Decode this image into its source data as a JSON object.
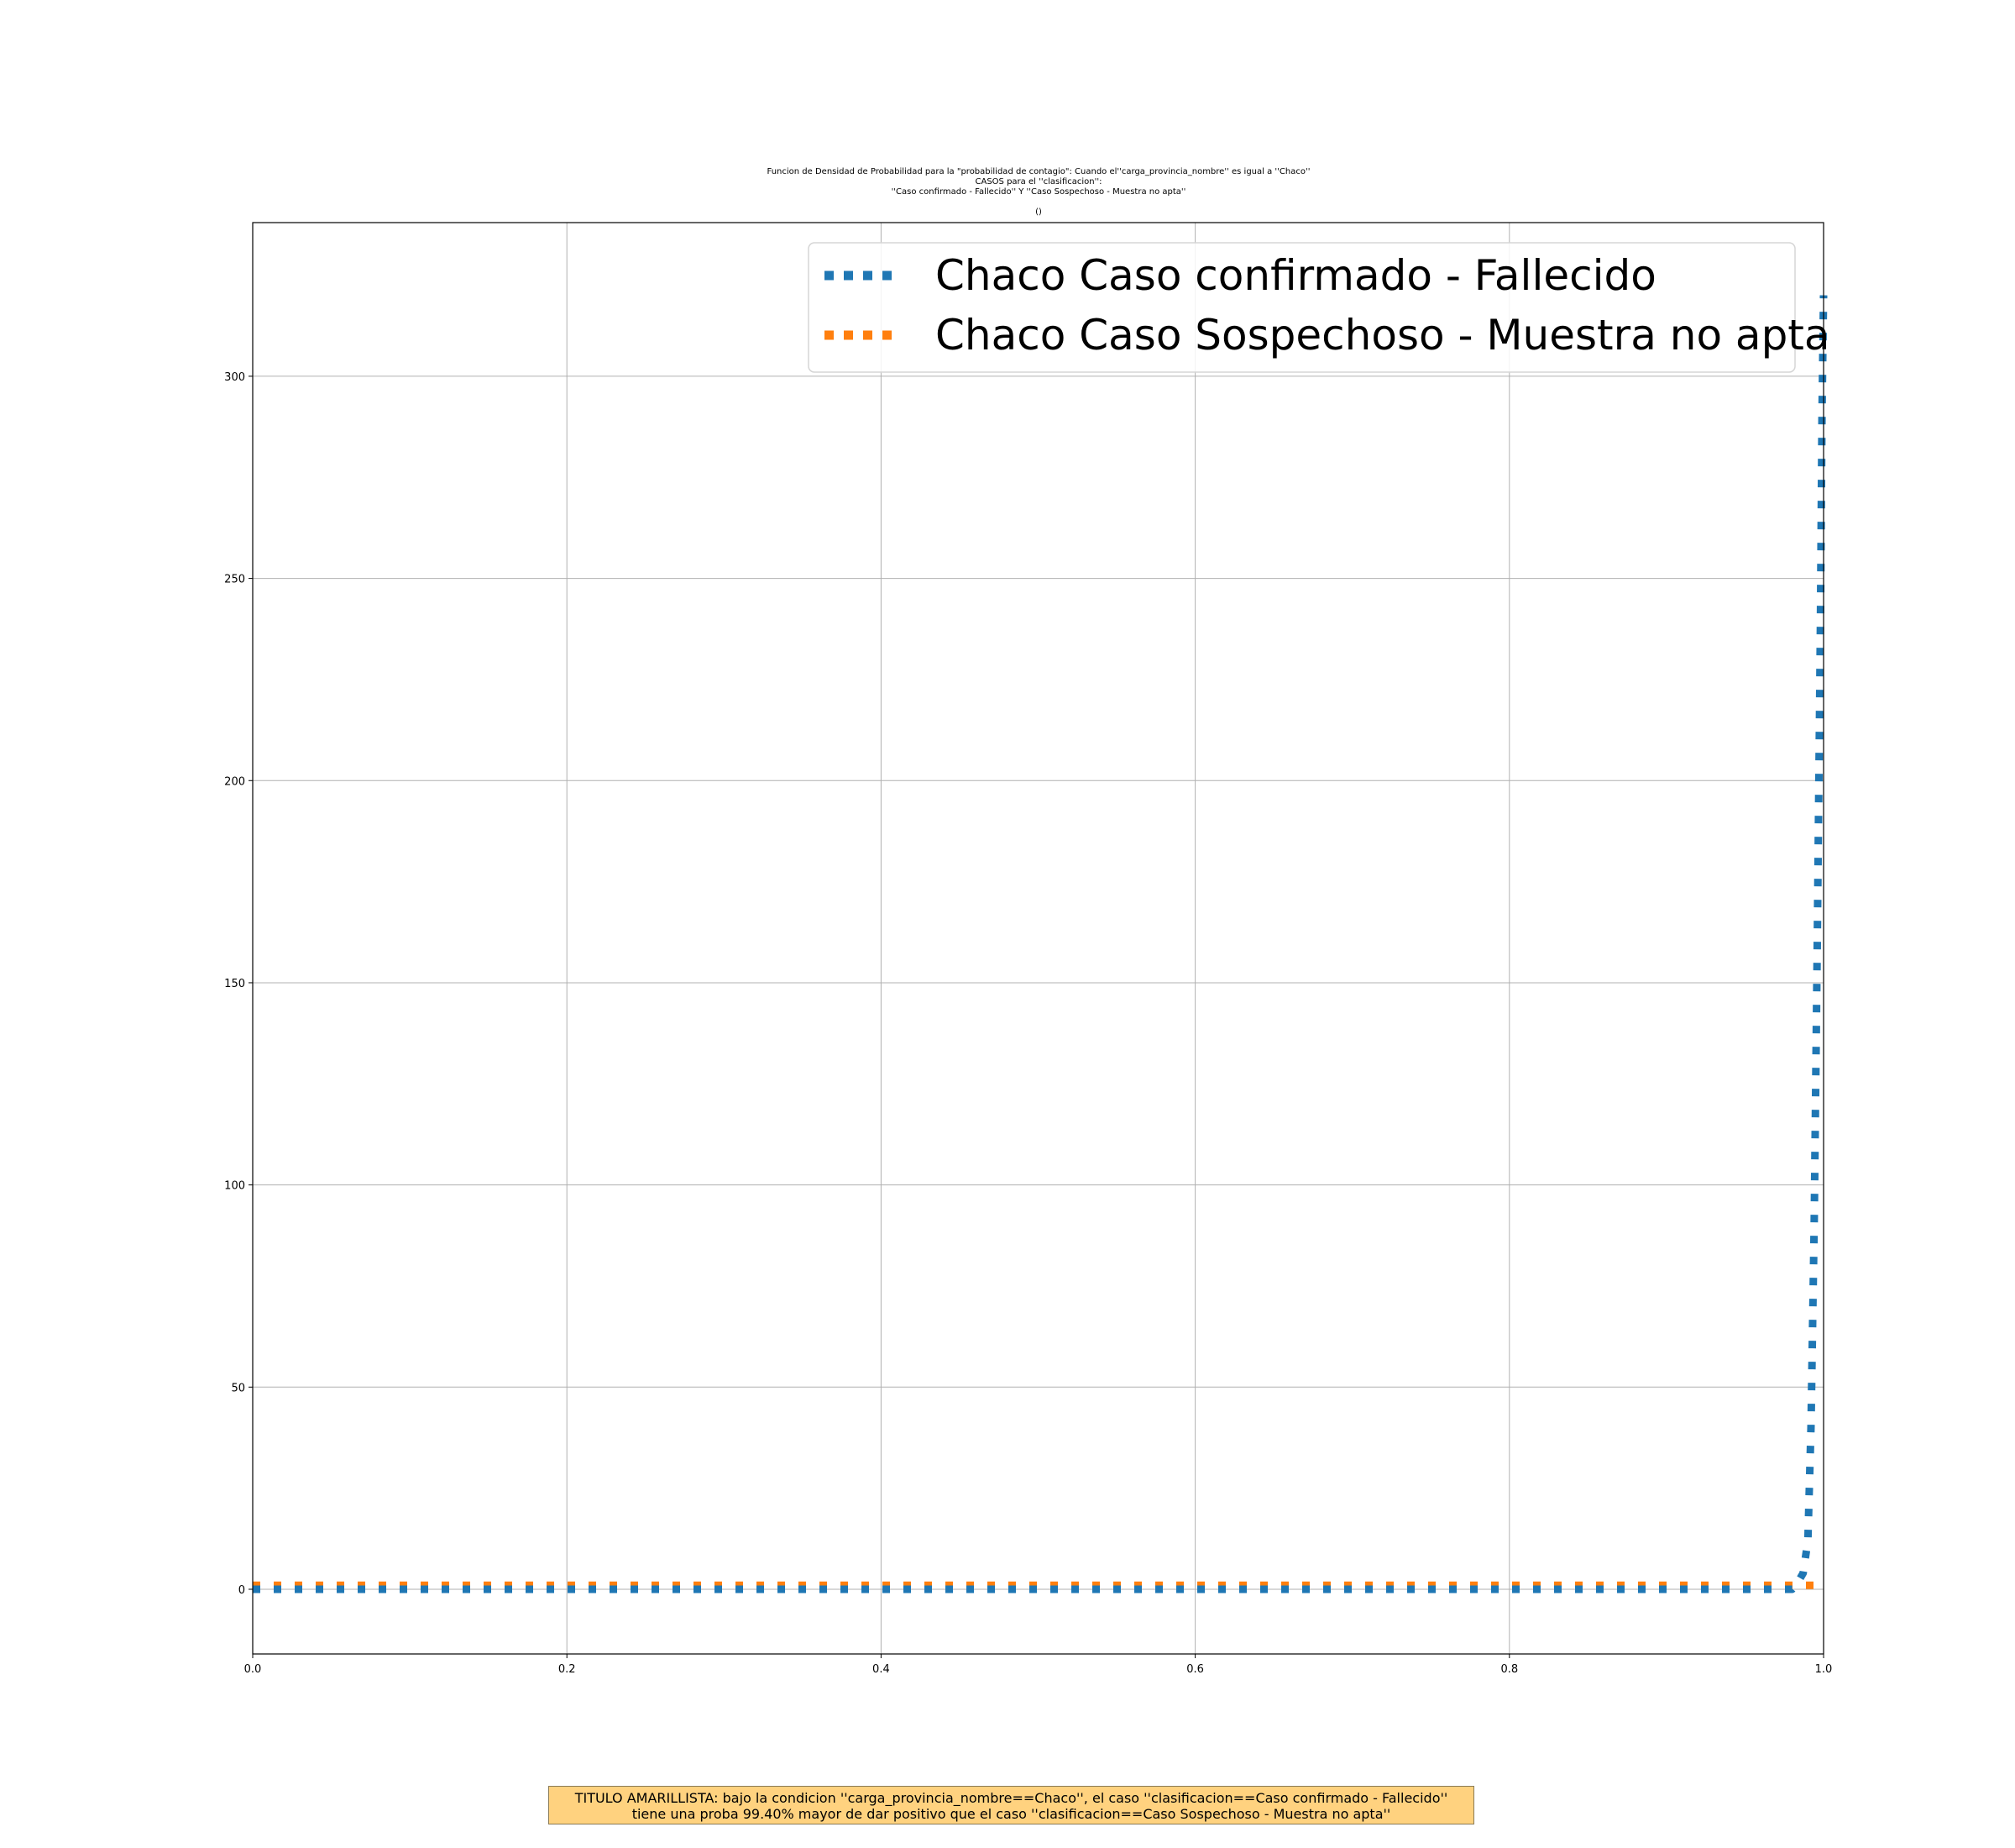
{
  "title_lines": [
    "Funcion de Densidad de Probabilidad para la \"probabilidad de contagio\": Cuando el''carga_provincia_nombre'' es igual a ''Chaco''",
    "CASOS para  el ''clasificacion'':",
    "''Caso confirmado - Fallecido'' Y ''Caso Sospechoso - Muestra no apta''",
    "()"
  ],
  "bottom_note": {
    "line1": "TITULO AMARILLISTA: bajo la condicion ''carga_provincia_nombre==Chaco'', el caso ''clasificacion==Caso confirmado - Fallecido''",
    "line2": "tiene una proba 99.40% mayor de dar positivo que el caso ''clasificacion==Caso Sospechoso - Muestra no apta''"
  },
  "chart_data": {
    "type": "line",
    "title": "Funcion de Densidad de Probabilidad para la \"probabilidad de contagio\": Cuando el''carga_provincia_nombre'' es igual a ''Chaco'' CASOS para  el ''clasificacion'': ''Caso confirmado - Fallecido'' Y ''Caso Sospechoso - Muestra no apta'' ()",
    "xlabel": "",
    "ylabel": "",
    "xlim": [
      0.0,
      1.0
    ],
    "ylim": [
      -16,
      338
    ],
    "xticks": [
      "0.0",
      "0.2",
      "0.4",
      "0.6",
      "0.8",
      "1.0"
    ],
    "yticks": [
      "0",
      "50",
      "100",
      "150",
      "200",
      "250",
      "300"
    ],
    "grid": true,
    "legend_position": "top-right",
    "series": [
      {
        "name": "Chaco Caso confirmado - Fallecido",
        "color": "#1f77b4",
        "style": "dotted",
        "x": [
          0.0,
          0.1,
          0.2,
          0.3,
          0.4,
          0.5,
          0.6,
          0.7,
          0.8,
          0.9,
          0.95,
          0.97,
          0.98,
          0.984,
          0.987,
          0.99,
          0.992,
          0.994,
          0.996,
          0.998,
          0.999,
          1.0
        ],
        "y": [
          0,
          0,
          0,
          0,
          0,
          0,
          0,
          0,
          0,
          0,
          0,
          0,
          0,
          2,
          4,
          12,
          40,
          90,
          160,
          240,
          290,
          320
        ]
      },
      {
        "name": "Chaco Caso Sospechoso - Muestra no apta",
        "color": "#ff7f0e",
        "style": "dotted",
        "x": [
          0.0,
          0.2,
          0.4,
          0.6,
          0.8,
          1.0
        ],
        "y": [
          1,
          1,
          1,
          1,
          1,
          1
        ]
      }
    ]
  }
}
